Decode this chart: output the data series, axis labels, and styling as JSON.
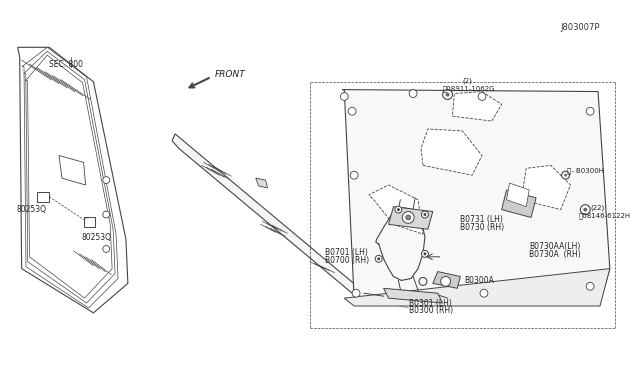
{
  "background_color": "#ffffff",
  "diagram_id": "J803007P",
  "line_color": "#444444",
  "text_color": "#222222",
  "font_size": 5.5,
  "labels": {
    "part1a": "80253Q",
    "part1b": "80253Q",
    "sec": "SEC. 800",
    "b0300rh": "B0300 (RH)",
    "b0301lh": "B0301 (LH)",
    "b0300a": "B0300A",
    "b0730a_rh": "B0730A  (RH)",
    "b0730aa_lh": "B0730AA(LH)",
    "b0730rh": "B0730 (RH)",
    "b0731lh": "B0731 (LH)",
    "b0700rh": "B0700 (RH)",
    "b0701lh": "B0701 (LH)",
    "bolt1": "08146-6122H",
    "bolt1b": "(22)",
    "b0300h": "- B0300H",
    "bolt2": "08911-1062G",
    "bolt2b": "(2)",
    "front": "FRONT"
  }
}
